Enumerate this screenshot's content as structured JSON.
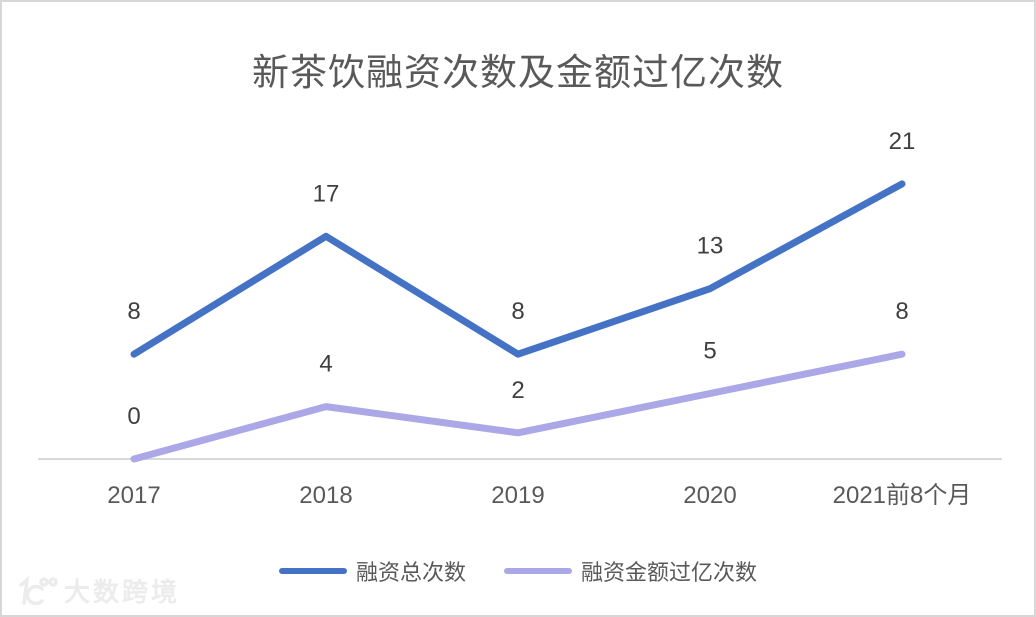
{
  "title": "新茶饮融资次数及金额过亿次数",
  "chart_data": {
    "type": "line",
    "title": "新茶饮融资次数及金额过亿次数",
    "categories": [
      "2017",
      "2018",
      "2019",
      "2020",
      "2021前8个月"
    ],
    "series": [
      {
        "name": "融资总次数",
        "values": [
          8,
          17,
          8,
          13,
          21
        ],
        "color": "#4472C4"
      },
      {
        "name": "融资金额过亿次数",
        "values": [
          0,
          4,
          2,
          5,
          8
        ],
        "color": "#ACA7E6"
      }
    ],
    "xlabel": "",
    "ylabel": "",
    "ylim": [
      0,
      25
    ],
    "grid": false,
    "legend_position": "bottom",
    "data_labels": true
  },
  "legend": {
    "items": [
      "融资总次数",
      "融资金额过亿次数"
    ]
  },
  "watermark": {
    "icon": "k100-logo",
    "text": "大数跨境"
  },
  "colors": {
    "series_primary": "#4472C4",
    "series_secondary": "#ACA7E6",
    "axis_line": "#D9D9D9",
    "title_text": "#595959",
    "data_label_text": "#3F3F3F",
    "tick_text": "#595959",
    "watermark": "#ECECEC",
    "frame_border": "#D7D7D7",
    "background": "#FFFFFF"
  }
}
